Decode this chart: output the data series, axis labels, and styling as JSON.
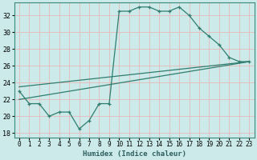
{
  "xlabel": "Humidex (Indice chaleur)",
  "bg_color": "#cceaea",
  "grid_color": "#e8b8b8",
  "line_color": "#2e7d6e",
  "xlim": [
    -0.5,
    23.5
  ],
  "ylim": [
    17.5,
    33.5
  ],
  "xticks": [
    0,
    1,
    2,
    3,
    4,
    5,
    6,
    7,
    8,
    9,
    10,
    11,
    12,
    13,
    14,
    15,
    16,
    17,
    18,
    19,
    20,
    21,
    22,
    23
  ],
  "yticks": [
    18,
    20,
    22,
    24,
    26,
    28,
    30,
    32
  ],
  "curve1_x": [
    0,
    1,
    2,
    3,
    4,
    5,
    6,
    7,
    8,
    9,
    10,
    11,
    12,
    13,
    14,
    15,
    16,
    17,
    18,
    19,
    20,
    21,
    22,
    23
  ],
  "curve1_y": [
    23.0,
    21.5,
    21.5,
    20.0,
    20.5,
    20.5,
    18.5,
    19.5,
    21.5,
    21.5,
    32.5,
    32.5,
    33.0,
    33.0,
    32.5,
    32.5,
    33.0,
    32.0,
    30.5,
    29.5,
    28.5,
    27.0,
    26.5,
    26.5
  ],
  "curve2_x": [
    0,
    23
  ],
  "curve2_y": [
    22.0,
    26.5
  ],
  "curve3_x": [
    0,
    23
  ],
  "curve3_y": [
    23.5,
    26.5
  ],
  "xlabel_fontsize": 6.5,
  "tick_fontsize": 5.5,
  "ytick_fontsize": 6.0
}
